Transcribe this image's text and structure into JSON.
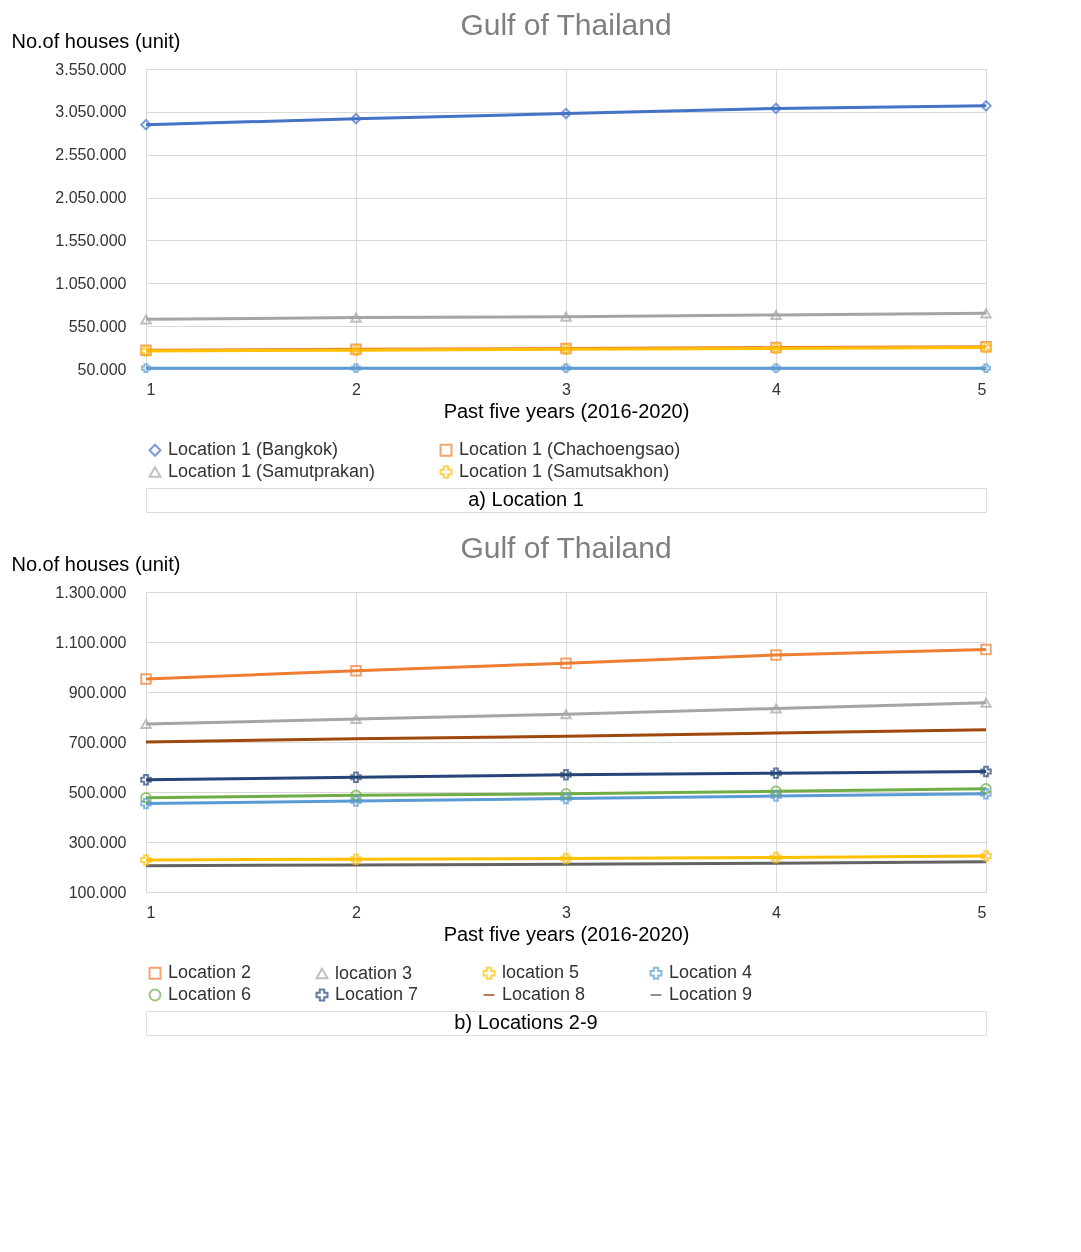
{
  "chart_data": [
    {
      "type": "line",
      "title": "Gulf of Thailand",
      "xlabel": "Past five years (2016-2020)",
      "ylabel": "No.of houses (unit)",
      "x": [
        1,
        2,
        3,
        4,
        5
      ],
      "xlim": [
        1,
        5
      ],
      "xticks": [
        1,
        2,
        3,
        4,
        5
      ],
      "ylim": [
        50000,
        3550000
      ],
      "yticks": [
        {
          "value": 50000,
          "label": "50.000"
        },
        {
          "value": 550000,
          "label": "550.000"
        },
        {
          "value": 1050000,
          "label": "1.050.000"
        },
        {
          "value": 1550000,
          "label": "1.550.000"
        },
        {
          "value": 2050000,
          "label": "2.050.000"
        },
        {
          "value": 2550000,
          "label": "2.550.000"
        },
        {
          "value": 3050000,
          "label": "3.050.000"
        },
        {
          "value": 3550000,
          "label": "3.550.000"
        }
      ],
      "grid": true,
      "legend": "bottom",
      "annotations": [
        "a)        Location 1"
      ],
      "series": [
        {
          "name": "Location 1 (Bangkok)",
          "color": "#4472c4",
          "marker": "diamond",
          "values": [
            2900000,
            2970000,
            3030000,
            3090000,
            3120000
          ]
        },
        {
          "name": "Location 1 (Chachoengsao)",
          "color": "#ed7d31",
          "marker": "square",
          "values": [
            270000,
            280000,
            290000,
            300000,
            310000
          ]
        },
        {
          "name": "Location 1 (Samutprakan)",
          "color": "#a5a5a5",
          "marker": "triangle",
          "values": [
            630000,
            650000,
            660000,
            680000,
            700000
          ]
        },
        {
          "name": "Location 1 (Samutsakhon)",
          "color": "#ffc000",
          "marker": "cross",
          "values": [
            260000,
            270000,
            280000,
            290000,
            300000
          ]
        },
        {
          "color": "#5b9bd5",
          "marker": "cross",
          "values": [
            60000,
            60000,
            60000,
            60000,
            60000
          ]
        }
      ]
    },
    {
      "type": "line",
      "title": "Gulf of Thailand",
      "xlabel": "Past five years (2016-2020)",
      "ylabel": "No.of houses (unit)",
      "x": [
        1,
        2,
        3,
        4,
        5
      ],
      "xlim": [
        1,
        5
      ],
      "xticks": [
        1,
        2,
        3,
        4,
        5
      ],
      "ylim": [
        100000,
        1300000
      ],
      "yticks": [
        {
          "value": 100000,
          "label": "100.000"
        },
        {
          "value": 300000,
          "label": "300.000"
        },
        {
          "value": 500000,
          "label": "500.000"
        },
        {
          "value": 700000,
          "label": "700.000"
        },
        {
          "value": 900000,
          "label": "900.000"
        },
        {
          "value": 1100000,
          "label": "1.100.000"
        },
        {
          "value": 1300000,
          "label": "1.300.000"
        }
      ],
      "grid": true,
      "legend": "bottom",
      "annotations": [
        "b)        Locations 2-9"
      ],
      "series": [
        {
          "name": "Location 2",
          "color": "#ed7d31",
          "marker": "square",
          "values": [
            952000,
            985000,
            1015000,
            1048000,
            1070000
          ]
        },
        {
          "name": "location 3",
          "color": "#a5a5a5",
          "marker": "triangle",
          "values": [
            772000,
            792000,
            811000,
            834000,
            857000
          ]
        },
        {
          "name": "location 5",
          "color": "#ffc000",
          "marker": "cross",
          "values": [
            228000,
            231000,
            234000,
            238000,
            244000
          ]
        },
        {
          "name": "Location 4",
          "color": "#5b9bd5",
          "marker": "cross",
          "values": [
            454000,
            464000,
            474000,
            484000,
            493000
          ]
        },
        {
          "name": "Location 6",
          "color": "#70ad47",
          "marker": "circle",
          "values": [
            477000,
            487000,
            493000,
            503000,
            513000
          ]
        },
        {
          "name": "Location 7",
          "color": "#264478",
          "marker": "cross",
          "values": [
            549000,
            559000,
            569000,
            575000,
            582000
          ]
        },
        {
          "name": "Location 8",
          "color": "#9e480e",
          "marker": "none",
          "values": [
            700000,
            713000,
            723000,
            736000,
            749000
          ]
        },
        {
          "name": "Location 9",
          "color": "#636363",
          "marker": "none",
          "values": [
            205000,
            208000,
            211000,
            215000,
            221000
          ]
        }
      ]
    }
  ]
}
